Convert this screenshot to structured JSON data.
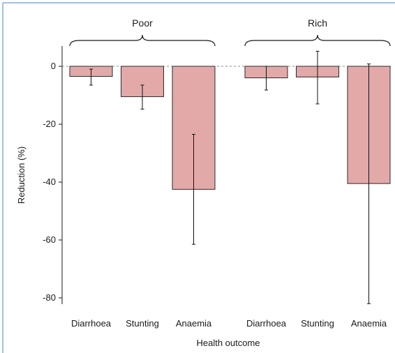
{
  "chart_data": {
    "type": "bar",
    "xlabel": "Health outcome",
    "ylabel": "Reduction (%)",
    "ylim": [
      -85,
      7
    ],
    "yticks": [
      0,
      -20,
      -40,
      -60,
      -80
    ],
    "reference_line": 0,
    "grid": false,
    "colors": {
      "bar_fill": "#e3a9a9",
      "bar_stroke": "#2a2a2a",
      "error_bar": "#111111",
      "reference_line": "#888888",
      "frame": "#4a7fc1"
    },
    "groups": [
      {
        "label": "Poor",
        "bars": [
          {
            "category": "Diarrhoea",
            "value": -3.5,
            "ci_low": -6.5,
            "ci_high": -1.0
          },
          {
            "category": "Stunting",
            "value": -10.5,
            "ci_low": -14.8,
            "ci_high": -6.5
          },
          {
            "category": "Anaemia",
            "value": -42.5,
            "ci_low": -61.5,
            "ci_high": -23.5
          }
        ]
      },
      {
        "label": "Rich",
        "bars": [
          {
            "category": "Diarrhoea",
            "value": -4.0,
            "ci_low": -8.2,
            "ci_high": 0.0
          },
          {
            "category": "Stunting",
            "value": -3.7,
            "ci_low": -13.0,
            "ci_high": 5.2
          },
          {
            "category": "Anaemia",
            "value": -40.5,
            "ci_low": -82.0,
            "ci_high": 0.8
          }
        ]
      }
    ]
  }
}
